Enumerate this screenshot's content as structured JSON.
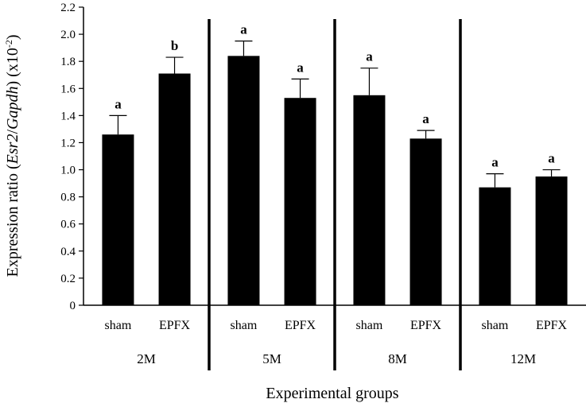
{
  "chart_data": {
    "type": "bar",
    "ylabel_prefix": "Expression ratio (",
    "ylabel_gene1": "Esr2",
    "ylabel_sep": "/",
    "ylabel_gene2": "Gapdh",
    "ylabel_mid": ") (x10",
    "ylabel_exp": "-2",
    "ylabel_suffix": ")",
    "xlabel": "Experimental groups",
    "ylim": [
      0,
      2.2
    ],
    "yticks": [
      "0",
      "0.2",
      "0.4",
      "0.6",
      "0.8",
      "1.0",
      "1.2",
      "1.4",
      "1.6",
      "1.8",
      "2.0",
      "2.2"
    ],
    "bar_color": "#000000",
    "groups": [
      {
        "label": "2M",
        "bars": [
          {
            "category": "sham",
            "value": 1.26,
            "error": 0.14,
            "sig": "a"
          },
          {
            "category": "EPFX",
            "value": 1.71,
            "error": 0.12,
            "sig": "b"
          }
        ]
      },
      {
        "label": "5M",
        "bars": [
          {
            "category": "sham",
            "value": 1.84,
            "error": 0.11,
            "sig": "a"
          },
          {
            "category": "EPFX",
            "value": 1.53,
            "error": 0.14,
            "sig": "a"
          }
        ]
      },
      {
        "label": "8M",
        "bars": [
          {
            "category": "sham",
            "value": 1.55,
            "error": 0.2,
            "sig": "a"
          },
          {
            "category": "EPFX",
            "value": 1.23,
            "error": 0.06,
            "sig": "a"
          }
        ]
      },
      {
        "label": "12M",
        "bars": [
          {
            "category": "sham",
            "value": 0.87,
            "error": 0.1,
            "sig": "a"
          },
          {
            "category": "EPFX",
            "value": 0.95,
            "error": 0.05,
            "sig": "a"
          }
        ]
      }
    ]
  }
}
